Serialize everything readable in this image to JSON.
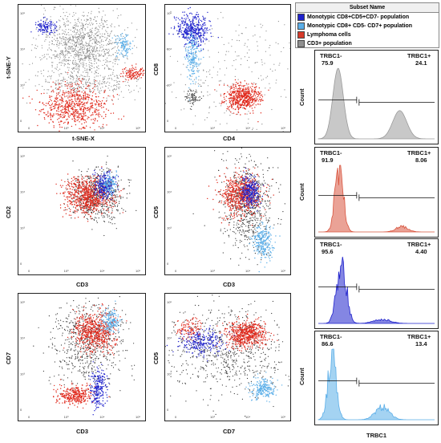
{
  "legend": {
    "header": "Subset Name",
    "items": [
      {
        "label": "Monotypic CD8+CD5+CD7- population",
        "color": "#1f22cc"
      },
      {
        "label": "Monotypic CD8+ CD5- CD7+ population",
        "color": "#5aaee8"
      },
      {
        "label": "Lymphoma cells",
        "color": "#d63a2a"
      },
      {
        "label": "CD3+ population",
        "color": "#909090"
      }
    ]
  },
  "chart_data": [
    {
      "type": "scatter",
      "id": "tsne",
      "xlabel": "t-SNE-X",
      "ylabel": "t-SNE-Y",
      "populations": [
        {
          "name": "CD3+ population",
          "x": 0.5,
          "y": 0.62
        },
        {
          "name": "Monotypic CD8+CD5+CD7- population",
          "x": 0.18,
          "y": 0.82
        },
        {
          "name": "Monotypic CD8+ CD5- CD7+ population",
          "x": 0.85,
          "y": 0.7
        },
        {
          "name": "Lymphoma cells",
          "x": 0.45,
          "y": 0.2
        },
        {
          "name": "Lymphoma cells",
          "x": 0.9,
          "y": 0.45
        }
      ]
    },
    {
      "type": "scatter",
      "id": "cd4_cd8",
      "xlabel": "CD4",
      "ylabel": "CD8"
    },
    {
      "type": "scatter",
      "id": "cd3_cd2",
      "xlabel": "CD3",
      "ylabel": "CD2"
    },
    {
      "type": "scatter",
      "id": "cd3_cd5",
      "xlabel": "CD3",
      "ylabel": "CD5"
    },
    {
      "type": "scatter",
      "id": "cd3_cd7",
      "xlabel": "CD3",
      "ylabel": "CD7"
    },
    {
      "type": "scatter",
      "id": "cd7_cd5",
      "xlabel": "CD7",
      "ylabel": "CD5"
    },
    {
      "type": "histogram",
      "id": "h1",
      "population": "CD3+ population",
      "ylabel": "Count",
      "color": "#909090",
      "gates": [
        {
          "label": "TRBC1-",
          "value": "75.9"
        },
        {
          "label": "TRBC1+",
          "value": "24.1"
        }
      ]
    },
    {
      "type": "histogram",
      "id": "h2",
      "population": "Lymphoma cells",
      "ylabel": "Count",
      "color": "#d63a2a",
      "gates": [
        {
          "label": "TRBC1-",
          "value": "91.9"
        },
        {
          "label": "TRBC1+",
          "value": "8.06"
        }
      ]
    },
    {
      "type": "histogram",
      "id": "h3",
      "population": "Monotypic CD8+CD5+CD7- population",
      "ylabel": "",
      "color": "#1f22cc",
      "gates": [
        {
          "label": "TRBC1-",
          "value": "95.6"
        },
        {
          "label": "TRBC1+",
          "value": "4.40"
        }
      ]
    },
    {
      "type": "histogram",
      "id": "h4",
      "population": "Monotypic CD8+ CD5- CD7+ population",
      "ylabel": "Count",
      "color": "#5aaee8",
      "xlabel": "TRBC1",
      "gates": [
        {
          "label": "TRBC1-",
          "value": "86.6"
        },
        {
          "label": "TRBC1+",
          "value": "13.4"
        }
      ]
    }
  ]
}
